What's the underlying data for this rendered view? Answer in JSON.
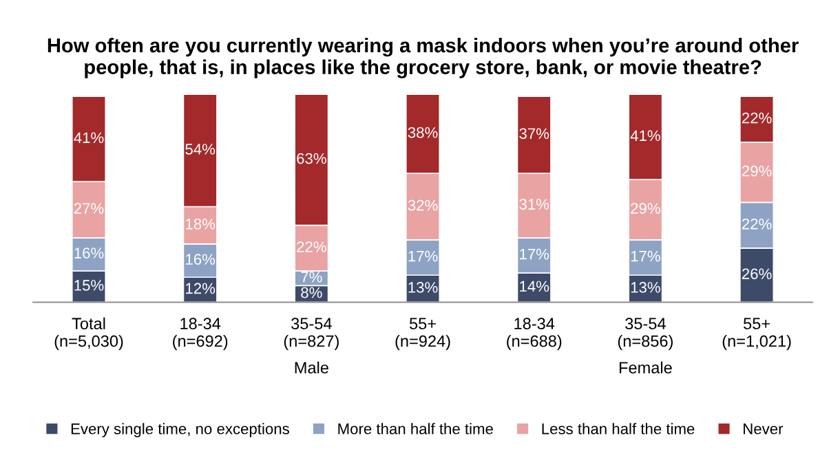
{
  "chart_data": {
    "type": "bar",
    "stacked": true,
    "title": "How often are you currently wearing a mask indoors when you’re around other people, that is, in places like the grocery store, bank, or movie theatre?",
    "categories": [
      "Total\n(n=5,030)",
      "18-34\n(n=692)",
      "35-54\n(n=827)",
      "55+\n(n=924)",
      "18-34\n(n=688)",
      "35-54\n(n=856)",
      "55+\n(n=1,021)"
    ],
    "series": [
      {
        "name": "Every single time, no exceptions",
        "color": "#3d4b69",
        "values": [
          15,
          12,
          8,
          13,
          14,
          13,
          26
        ],
        "value_labels": [
          "15%",
          "12%",
          "8%",
          "13%",
          "14%",
          "13%",
          "26%"
        ]
      },
      {
        "name": "More than half the time",
        "color": "#8ea3c4",
        "values": [
          16,
          16,
          7,
          17,
          17,
          17,
          22
        ],
        "value_labels": [
          "16%",
          "16%",
          "7%",
          "17%",
          "17%",
          "17%",
          "22%"
        ]
      },
      {
        "name": "Less than half the time",
        "color": "#e9a3a3",
        "values": [
          27,
          18,
          22,
          32,
          31,
          29,
          29
        ],
        "value_labels": [
          "27%",
          "18%",
          "22%",
          "32%",
          "31%",
          "29%",
          "29%"
        ]
      },
      {
        "name": "Never",
        "color": "#a3292b",
        "values": [
          41,
          54,
          63,
          38,
          37,
          41,
          22
        ],
        "value_labels": [
          "41%",
          "54%",
          "63%",
          "38%",
          "37%",
          "41%",
          "22%"
        ]
      }
    ],
    "annotations": [
      "Male",
      "Female"
    ],
    "legend": "bottom",
    "grid": false
  }
}
